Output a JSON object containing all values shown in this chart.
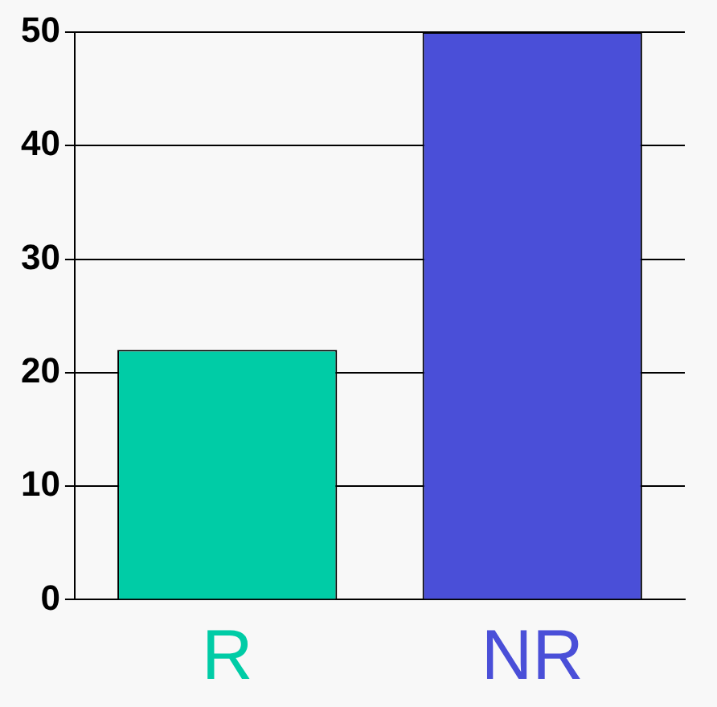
{
  "chart_data": {
    "type": "bar",
    "categories": [
      "R",
      "NR"
    ],
    "values": [
      22,
      50
    ],
    "colors": [
      "#00cca6",
      "#4a4fd8"
    ],
    "ylim": [
      0,
      50
    ],
    "yticks": [
      0,
      10,
      20,
      30,
      40,
      50
    ],
    "grid": "y",
    "legend": false
  }
}
